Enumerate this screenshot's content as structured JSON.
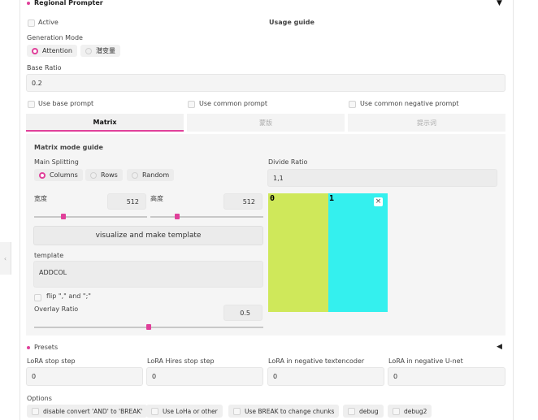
{
  "header": {
    "title": "Regional Prompter",
    "toggle_icon": "▼"
  },
  "active": {
    "label": "Active",
    "usage_guide": "Usage guide"
  },
  "generation_mode": {
    "label": "Generation Mode",
    "options": [
      "Attention",
      "潜变量"
    ]
  },
  "base_ratio": {
    "label": "Base Ratio",
    "value": "0.2"
  },
  "prompt_checks": [
    "Use base prompt",
    "Use common prompt",
    "Use common negative prompt"
  ],
  "tabs": [
    "Matrix",
    "蒙版",
    "提示词"
  ],
  "matrix": {
    "guide": "Matrix mode guide",
    "main_splitting_label": "Main Splitting",
    "splitting_options": [
      "Columns",
      "Rows",
      "Random"
    ],
    "divide_ratio_label": "Divide Ratio",
    "divide_ratio_value": "1,1",
    "width_label": "宽度",
    "width_value": "512",
    "height_label": "高度",
    "height_value": "512",
    "visualize_button": "visualize and make template",
    "template_label": "template",
    "template_value": "ADDCOL",
    "flip_label": "flip \",\" and \";\"",
    "overlay_label": "Overlay Ratio",
    "overlay_value": "0.5",
    "overlay_fraction": 0.5,
    "width_fraction": 0.26,
    "height_fraction": 0.24,
    "preview_labels": [
      "0",
      "1"
    ],
    "preview_colors": [
      "#cfe85a",
      "#34f0ee"
    ],
    "close_icon": "×"
  },
  "presets": {
    "label": "Presets",
    "toggle_icon": "◀"
  },
  "lora": [
    {
      "label": "LoRA stop step",
      "value": "0"
    },
    {
      "label": "LoRA Hires stop step",
      "value": "0"
    },
    {
      "label": "LoRA in negative textencoder",
      "value": "0"
    },
    {
      "label": "LoRA in negative U-net",
      "value": "0"
    }
  ],
  "options": {
    "label": "Options",
    "items": [
      "disable convert 'AND' to 'BREAK'",
      "Use LoHa or other",
      "Use BREAK to change chunks",
      "debug",
      "debug2"
    ]
  },
  "colors": {
    "accent": "#e0409a"
  }
}
